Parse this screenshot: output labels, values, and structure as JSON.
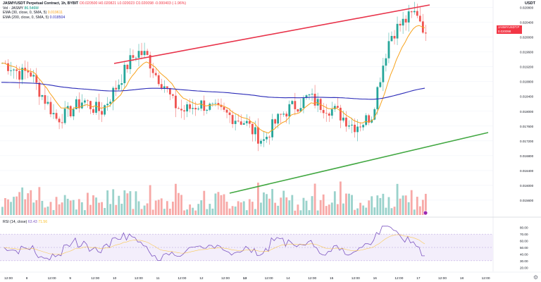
{
  "header": {
    "unit": "USDT",
    "symbol_line": "JASMYUSDT Perpetual Contract, 1h, BYBIT",
    "ohlc": "O0.020500 H0.020821 L0.020023 C0.020098 -0.000403 (-1.96%)",
    "vol_label": "Vol · JASMY",
    "vol_value": "86.546M",
    "ema1_label": "EMA (30, close, 0, SMA, 5)",
    "ema1_value": "0.019611",
    "ema2_label": "EMA (200, close, 0, SMA, 5)",
    "ema2_value": "0.018504"
  },
  "price_badge": {
    "line1": "JASMYUSDT.P 0.020098",
    "line2": "18:08"
  },
  "price_axis": [
    "0.020800",
    "0.020400",
    "0.020000",
    "0.019600",
    "0.019200",
    "0.018800",
    "0.018400",
    "0.018000",
    "0.017600",
    "0.017200",
    "0.016800",
    "0.016400",
    "0.016000",
    "0.015600",
    "0.015200"
  ],
  "rsi": {
    "label": "RSI (14, close)",
    "value1": "63.43",
    "value2": "71.56",
    "axis": [
      "80.00",
      "70.00",
      "60.00",
      "50.00",
      "40.00",
      "30.00",
      "20.00"
    ]
  },
  "time_axis": [
    "12:00",
    "8",
    "12:00",
    "9",
    "12:00",
    "10",
    "12:00",
    "11",
    "12:00",
    "12",
    "12:00",
    "13",
    "12:00",
    "14",
    "12:00",
    "15",
    "12:00",
    "16",
    "12:00",
    "17",
    "12:00",
    "18",
    "12:00"
  ],
  "colors": {
    "up": "#26a69a",
    "down": "#ef5350",
    "ema_fast": "#f7a21b",
    "ema_slow": "#2b2bb8",
    "resistance": "#e8334a",
    "support": "#43a843",
    "rsi_line": "#7e57c2"
  },
  "chart_data": {
    "type": "candlestick",
    "instrument": "JASMYUSDT Perpetual Contract",
    "interval": "1h",
    "exchange": "BYBIT",
    "last_close": 0.020098,
    "ema_30_last": 0.019611,
    "ema_200_last": 0.018504,
    "rsi_last": 63.43,
    "close_path": [
      0.0193,
      0.0192,
      0.019,
      0.0191,
      0.0186,
      0.0182,
      0.0178,
      0.0179,
      0.0181,
      0.0183,
      0.0181,
      0.018,
      0.0184,
      0.0188,
      0.0193,
      0.0196,
      0.0195,
      0.019,
      0.0187,
      0.0182,
      0.018,
      0.0181,
      0.0182,
      0.0181,
      0.018,
      0.0179,
      0.0178,
      0.0177,
      0.0174,
      0.0172,
      0.0176,
      0.0179,
      0.0181,
      0.0182,
      0.0184,
      0.0182,
      0.0181,
      0.018,
      0.0178,
      0.0176,
      0.0177,
      0.0179,
      0.019,
      0.02,
      0.0203,
      0.0205,
      0.0207,
      0.0201
    ]
  }
}
